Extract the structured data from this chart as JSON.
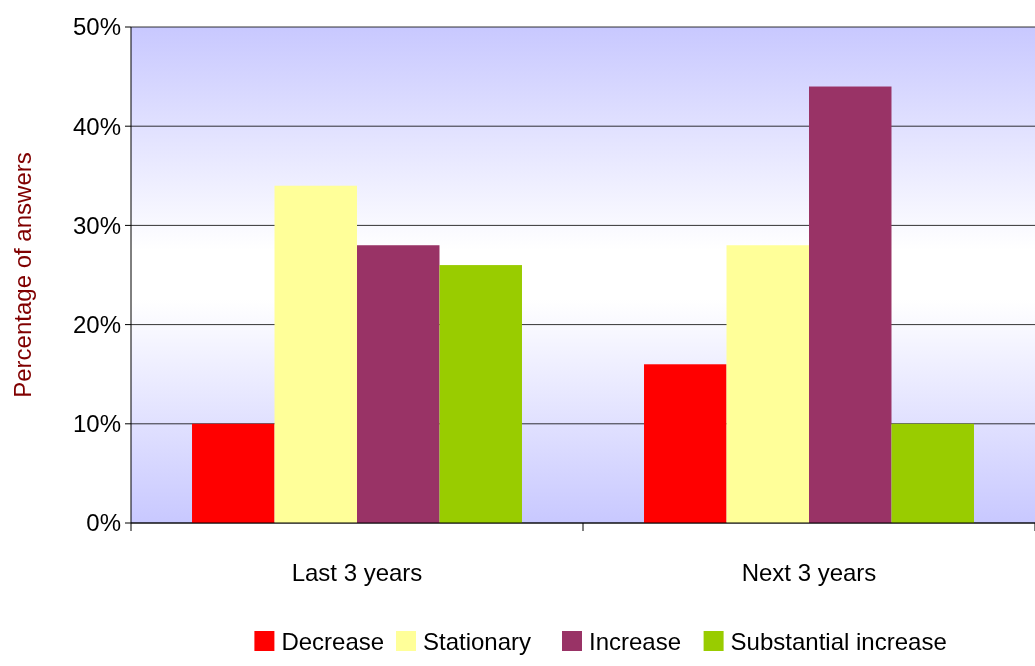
{
  "chart_data": {
    "type": "bar",
    "ylabel": "Percentage of answers",
    "categories": [
      "Last 3 years",
      "Next 3 years"
    ],
    "series": [
      {
        "name": "Decrease",
        "color": "#ff0000",
        "values": [
          10,
          16
        ]
      },
      {
        "name": "Stationary",
        "color": "#ffff99",
        "values": [
          34,
          28
        ]
      },
      {
        "name": "Increase",
        "color": "#993366",
        "values": [
          28,
          44
        ]
      },
      {
        "name": "Substantial increase",
        "color": "#99cc00",
        "values": [
          26,
          10
        ]
      }
    ],
    "ylim": [
      0,
      50
    ],
    "yticks": [
      {
        "value": 0,
        "label": "0%"
      },
      {
        "value": 10,
        "label": "10%"
      },
      {
        "value": 20,
        "label": "20%"
      },
      {
        "value": 30,
        "label": "30%"
      },
      {
        "value": 40,
        "label": "40%"
      },
      {
        "value": 50,
        "label": "50%"
      }
    ],
    "grid": "y",
    "legend": "bottom"
  }
}
